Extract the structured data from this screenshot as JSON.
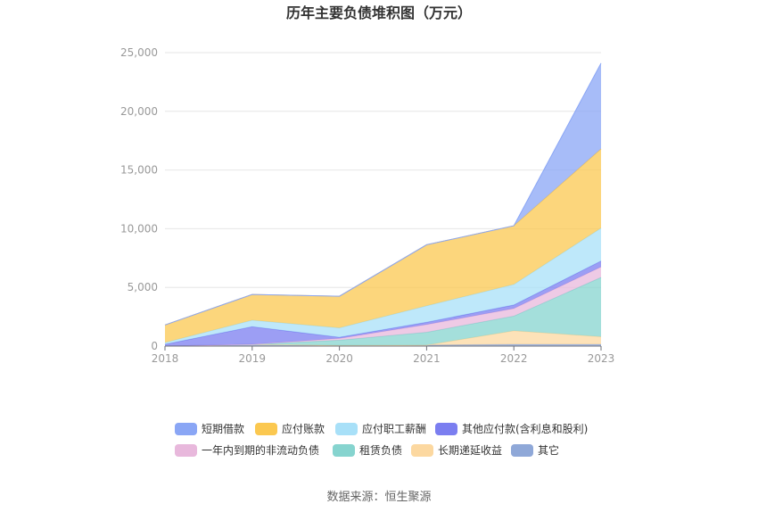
{
  "chart_data": {
    "type": "area",
    "stacked": true,
    "title": "历年主要负债堆积图（万元）",
    "x": [
      "2018",
      "2019",
      "2020",
      "2021",
      "2022",
      "2023"
    ],
    "y_ticks": [
      "0",
      "5,000",
      "10,000",
      "15,000",
      "20,000",
      "25,000"
    ],
    "ylim": [
      0,
      25000
    ],
    "grid": true,
    "legend_position": "bottom",
    "series": [
      {
        "name": "其它",
        "color": "#8fa8d8",
        "values": [
          0,
          150,
          50,
          80,
          150,
          150
        ]
      },
      {
        "name": "长期递延收益",
        "color": "#fcd8a0",
        "values": [
          0,
          0,
          0,
          0,
          1150,
          650
        ]
      },
      {
        "name": "租赁负债",
        "color": "#86d4cf",
        "values": [
          0,
          0,
          450,
          1100,
          1250,
          5050
        ]
      },
      {
        "name": "一年内到期的非流动负债",
        "color": "#e8b8dc",
        "values": [
          0,
          0,
          150,
          650,
          650,
          900
        ]
      },
      {
        "name": "其他应付款(含利息和股利)",
        "color": "#7b7ef0",
        "values": [
          150,
          1500,
          100,
          200,
          300,
          500
        ]
      },
      {
        "name": "应付职工薪酬",
        "color": "#a8e0f8",
        "values": [
          150,
          550,
          800,
          1400,
          1750,
          2800
        ]
      },
      {
        "name": "应付账款",
        "color": "#fbc850",
        "values": [
          1500,
          2200,
          2700,
          5200,
          5000,
          6750
        ]
      },
      {
        "name": "短期借款",
        "color": "#8aa6f5",
        "values": [
          0,
          0,
          0,
          0,
          0,
          7300
        ]
      }
    ],
    "legend_order": [
      "短期借款",
      "应付账款",
      "应付职工薪酬",
      "其他应付款(含利息和股利)",
      "一年内到期的非流动负债",
      "租赁负债",
      "长期递延收益",
      "其它"
    ]
  },
  "source_text": "数据来源：恒生聚源"
}
